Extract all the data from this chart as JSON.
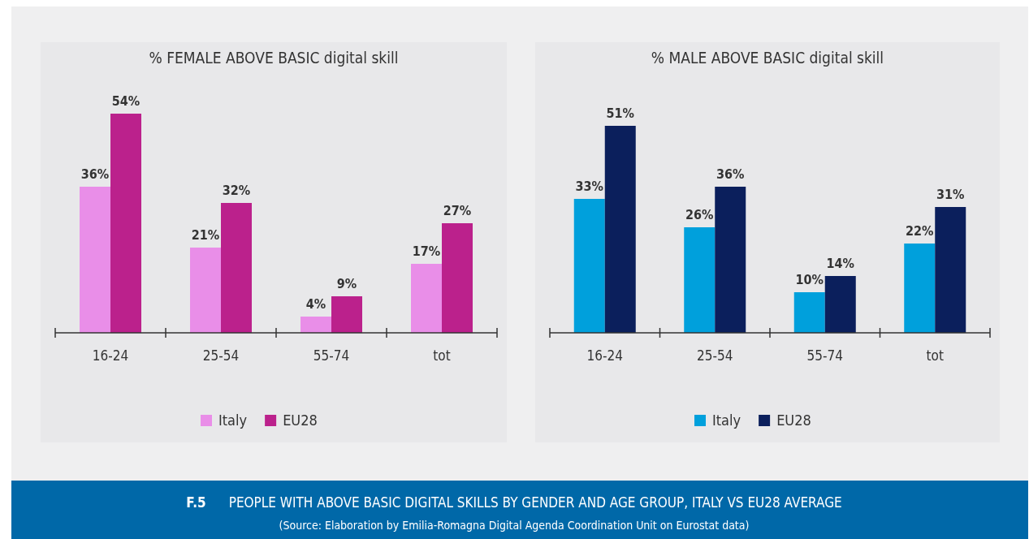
{
  "chart_data": [
    {
      "type": "bar",
      "title": "% FEMALE ABOVE BASIC digital skill",
      "categories": [
        "16-24",
        "25-54",
        "55-74",
        "tot"
      ],
      "series": [
        {
          "name": "Italy",
          "color": "#e98ee8",
          "values": [
            36,
            21,
            4,
            17
          ],
          "value_labels": [
            "36%",
            "21%",
            "4%",
            "17%"
          ]
        },
        {
          "name": "EU28",
          "color": "#bb218c",
          "values": [
            54,
            32,
            9,
            27
          ],
          "value_labels": [
            "54%",
            "32%",
            "9%",
            "27%"
          ]
        }
      ],
      "legend": "bottom",
      "grid": false
    },
    {
      "type": "bar",
      "title": "% MALE ABOVE BASIC digital skill",
      "categories": [
        "16-24",
        "25-54",
        "55-74",
        "tot"
      ],
      "series": [
        {
          "name": "Italy",
          "color": "#00a0dc",
          "values": [
            33,
            26,
            10,
            22
          ],
          "value_labels": [
            "33%",
            "26%",
            "10%",
            "22%"
          ]
        },
        {
          "name": "EU28",
          "color": "#0b1f5c",
          "values": [
            51,
            36,
            14,
            31
          ],
          "value_labels": [
            "51%",
            "36%",
            "14%",
            "31%"
          ]
        }
      ],
      "legend": "bottom",
      "grid": false
    },
    {
      "type": "other",
      "title": "F.5",
      "subtitle": "PEOPLE WITH ABOVE BASIC DIGITAL SKILLS BY GENDER AND AGE GROUP, ITALY VS EU28 AVERAGE",
      "annotations": [
        "(Source: Elaboration by Emilia-Romagna Digital Agenda Coordination Unit on Eurostat data)"
      ]
    }
  ]
}
